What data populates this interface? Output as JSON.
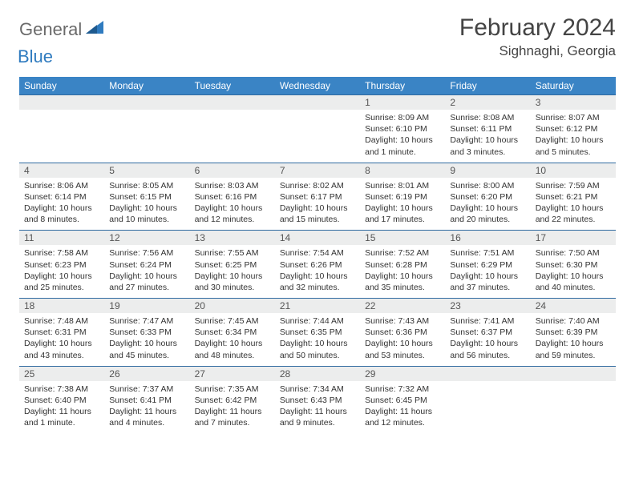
{
  "logo": {
    "general": "General",
    "blue": "Blue"
  },
  "title": "February 2024",
  "location": "Sighnaghi, Georgia",
  "header_bg": "#3a84c5",
  "header_bg_weekend": "#5a9bd1",
  "daynum_bg": "#eceded",
  "border_color": "#2f6aa0",
  "day_names": [
    "Sunday",
    "Monday",
    "Tuesday",
    "Wednesday",
    "Thursday",
    "Friday",
    "Saturday"
  ],
  "weeks": [
    [
      null,
      null,
      null,
      null,
      {
        "n": "1",
        "sr": "8:09 AM",
        "ss": "6:10 PM",
        "dl": "10 hours and 1 minute."
      },
      {
        "n": "2",
        "sr": "8:08 AM",
        "ss": "6:11 PM",
        "dl": "10 hours and 3 minutes."
      },
      {
        "n": "3",
        "sr": "8:07 AM",
        "ss": "6:12 PM",
        "dl": "10 hours and 5 minutes."
      }
    ],
    [
      {
        "n": "4",
        "sr": "8:06 AM",
        "ss": "6:14 PM",
        "dl": "10 hours and 8 minutes."
      },
      {
        "n": "5",
        "sr": "8:05 AM",
        "ss": "6:15 PM",
        "dl": "10 hours and 10 minutes."
      },
      {
        "n": "6",
        "sr": "8:03 AM",
        "ss": "6:16 PM",
        "dl": "10 hours and 12 minutes."
      },
      {
        "n": "7",
        "sr": "8:02 AM",
        "ss": "6:17 PM",
        "dl": "10 hours and 15 minutes."
      },
      {
        "n": "8",
        "sr": "8:01 AM",
        "ss": "6:19 PM",
        "dl": "10 hours and 17 minutes."
      },
      {
        "n": "9",
        "sr": "8:00 AM",
        "ss": "6:20 PM",
        "dl": "10 hours and 20 minutes."
      },
      {
        "n": "10",
        "sr": "7:59 AM",
        "ss": "6:21 PM",
        "dl": "10 hours and 22 minutes."
      }
    ],
    [
      {
        "n": "11",
        "sr": "7:58 AM",
        "ss": "6:23 PM",
        "dl": "10 hours and 25 minutes."
      },
      {
        "n": "12",
        "sr": "7:56 AM",
        "ss": "6:24 PM",
        "dl": "10 hours and 27 minutes."
      },
      {
        "n": "13",
        "sr": "7:55 AM",
        "ss": "6:25 PM",
        "dl": "10 hours and 30 minutes."
      },
      {
        "n": "14",
        "sr": "7:54 AM",
        "ss": "6:26 PM",
        "dl": "10 hours and 32 minutes."
      },
      {
        "n": "15",
        "sr": "7:52 AM",
        "ss": "6:28 PM",
        "dl": "10 hours and 35 minutes."
      },
      {
        "n": "16",
        "sr": "7:51 AM",
        "ss": "6:29 PM",
        "dl": "10 hours and 37 minutes."
      },
      {
        "n": "17",
        "sr": "7:50 AM",
        "ss": "6:30 PM",
        "dl": "10 hours and 40 minutes."
      }
    ],
    [
      {
        "n": "18",
        "sr": "7:48 AM",
        "ss": "6:31 PM",
        "dl": "10 hours and 43 minutes."
      },
      {
        "n": "19",
        "sr": "7:47 AM",
        "ss": "6:33 PM",
        "dl": "10 hours and 45 minutes."
      },
      {
        "n": "20",
        "sr": "7:45 AM",
        "ss": "6:34 PM",
        "dl": "10 hours and 48 minutes."
      },
      {
        "n": "21",
        "sr": "7:44 AM",
        "ss": "6:35 PM",
        "dl": "10 hours and 50 minutes."
      },
      {
        "n": "22",
        "sr": "7:43 AM",
        "ss": "6:36 PM",
        "dl": "10 hours and 53 minutes."
      },
      {
        "n": "23",
        "sr": "7:41 AM",
        "ss": "6:37 PM",
        "dl": "10 hours and 56 minutes."
      },
      {
        "n": "24",
        "sr": "7:40 AM",
        "ss": "6:39 PM",
        "dl": "10 hours and 59 minutes."
      }
    ],
    [
      {
        "n": "25",
        "sr": "7:38 AM",
        "ss": "6:40 PM",
        "dl": "11 hours and 1 minute."
      },
      {
        "n": "26",
        "sr": "7:37 AM",
        "ss": "6:41 PM",
        "dl": "11 hours and 4 minutes."
      },
      {
        "n": "27",
        "sr": "7:35 AM",
        "ss": "6:42 PM",
        "dl": "11 hours and 7 minutes."
      },
      {
        "n": "28",
        "sr": "7:34 AM",
        "ss": "6:43 PM",
        "dl": "11 hours and 9 minutes."
      },
      {
        "n": "29",
        "sr": "7:32 AM",
        "ss": "6:45 PM",
        "dl": "11 hours and 12 minutes."
      },
      null,
      null
    ]
  ],
  "labels": {
    "sunrise": "Sunrise:",
    "sunset": "Sunset:",
    "daylight": "Daylight:"
  }
}
